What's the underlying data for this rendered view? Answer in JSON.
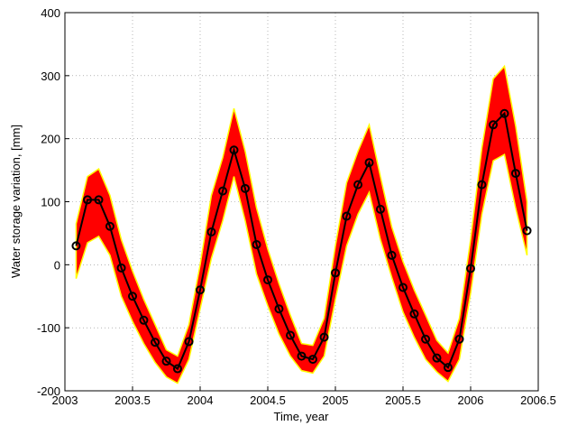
{
  "chart_data": {
    "type": "line",
    "xlabel": "Time, year",
    "ylabel": "Water storage variation, [mm]",
    "x": [
      2003.083,
      2003.167,
      2003.25,
      2003.333,
      2003.417,
      2003.5,
      2003.583,
      2003.667,
      2003.75,
      2003.833,
      2003.917,
      2004.0,
      2004.083,
      2004.167,
      2004.25,
      2004.333,
      2004.417,
      2004.5,
      2004.583,
      2004.667,
      2004.75,
      2004.833,
      2004.917,
      2005.0,
      2005.083,
      2005.167,
      2005.25,
      2005.333,
      2005.417,
      2005.5,
      2005.583,
      2005.667,
      2005.75,
      2005.833,
      2005.917,
      2006.0,
      2006.083,
      2006.167,
      2006.25,
      2006.333,
      2006.417
    ],
    "series": [
      {
        "color": "#000000",
        "marker": "circle",
        "values": [
          30,
          103,
          103,
          61,
          -5,
          -50,
          -88,
          -123,
          -153,
          -165,
          -122,
          -40,
          52,
          117,
          182,
          121,
          32,
          -24,
          -70,
          -112,
          -145,
          -150,
          -115,
          -13,
          77,
          127,
          162,
          88,
          15,
          -36,
          -78,
          -118,
          -148,
          -163,
          -118,
          -6,
          127,
          222,
          240,
          145,
          54
        ]
      }
    ],
    "envelope": {
      "color": "#ff0000",
      "edge_color": "#ffff00",
      "upper": [
        65,
        140,
        152,
        110,
        40,
        -10,
        -55,
        -95,
        -135,
        -145,
        -95,
        0,
        110,
        170,
        248,
        180,
        90,
        25,
        -30,
        -80,
        -125,
        -128,
        -85,
        30,
        130,
        180,
        222,
        140,
        60,
        5,
        -40,
        -80,
        -120,
        -140,
        -85,
        40,
        185,
        295,
        315,
        220,
        100
      ],
      "lower": [
        -22,
        35,
        45,
        15,
        -50,
        -90,
        -125,
        -155,
        -178,
        -188,
        -150,
        -70,
        10,
        70,
        140,
        70,
        -15,
        -65,
        -110,
        -145,
        -168,
        -172,
        -145,
        -55,
        30,
        80,
        115,
        40,
        -20,
        -75,
        -115,
        -150,
        -170,
        -185,
        -150,
        -45,
        80,
        165,
        175,
        90,
        15
      ]
    },
    "xlim": [
      2003,
      2006.5
    ],
    "xticks": [
      2003,
      2003.5,
      2004,
      2004.5,
      2005,
      2005.5,
      2006,
      2006.5
    ],
    "ylim": [
      -200,
      400
    ],
    "yticks": [
      -200,
      -100,
      0,
      100,
      200,
      300,
      400
    ],
    "grid": true
  }
}
